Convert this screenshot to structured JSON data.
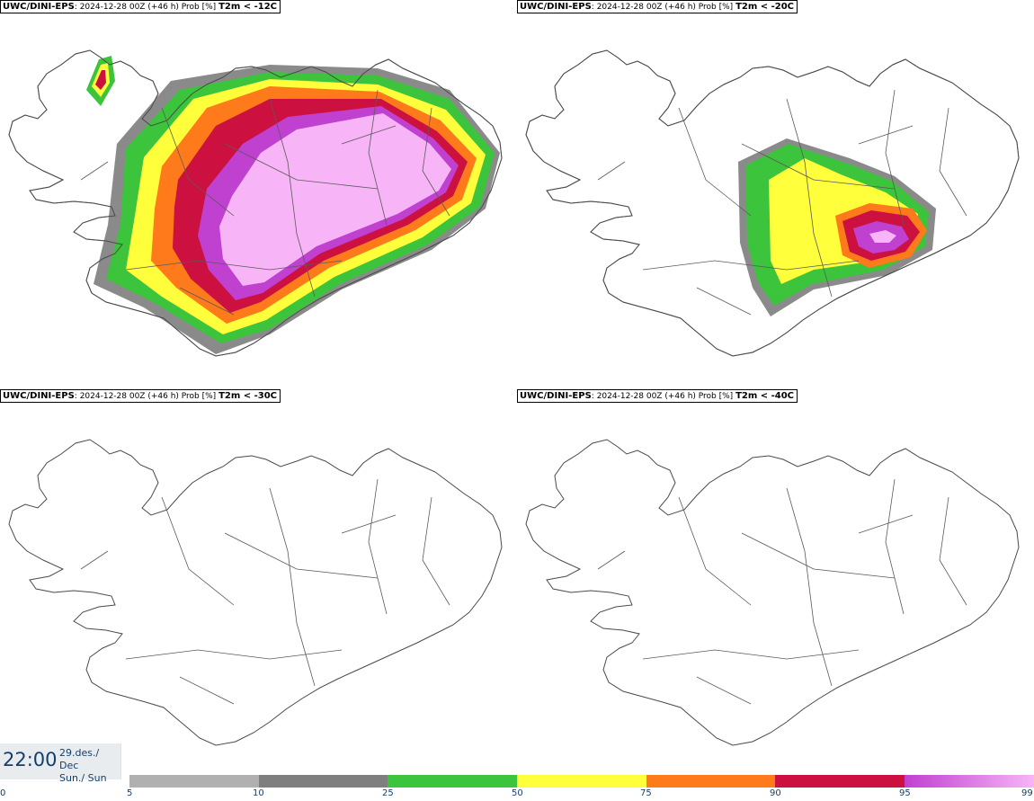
{
  "panels": [
    {
      "model": "UWC/DINI-EPS",
      "sep": ":",
      "run": "2024-12-28 00Z (+46 h) Prob [%]",
      "variable": "T2m < -12C"
    },
    {
      "model": "UWC/DINI-EPS",
      "sep": ":",
      "run": "2024-12-28 00Z (+46 h) Prob [%]",
      "variable": "T2m < -20C"
    },
    {
      "model": "UWC/DINI-EPS",
      "sep": ":",
      "run": "2024-12-28 00Z (+46 h) Prob [%]",
      "variable": "T2m < -30C"
    },
    {
      "model": "UWC/DINI-EPS",
      "sep": ":",
      "run": "2024-12-28 00Z (+46 h) Prob [%]",
      "variable": "T2m < -40C"
    }
  ],
  "time": {
    "clock": "22:00",
    "date_line": "29.des./ Dec",
    "day_line": "Sun./ Sun"
  },
  "colorbar": {
    "ticks": [
      "0",
      "5",
      "10",
      "25",
      "50",
      "75",
      "90",
      "95",
      "99"
    ],
    "colors": [
      "#b0b0b0",
      "#7f7f7f",
      "#3cc43c",
      "#ffff3c",
      "#ff7a1a",
      "#cc1040",
      "#c040d0",
      "#f7b4f7"
    ]
  }
}
